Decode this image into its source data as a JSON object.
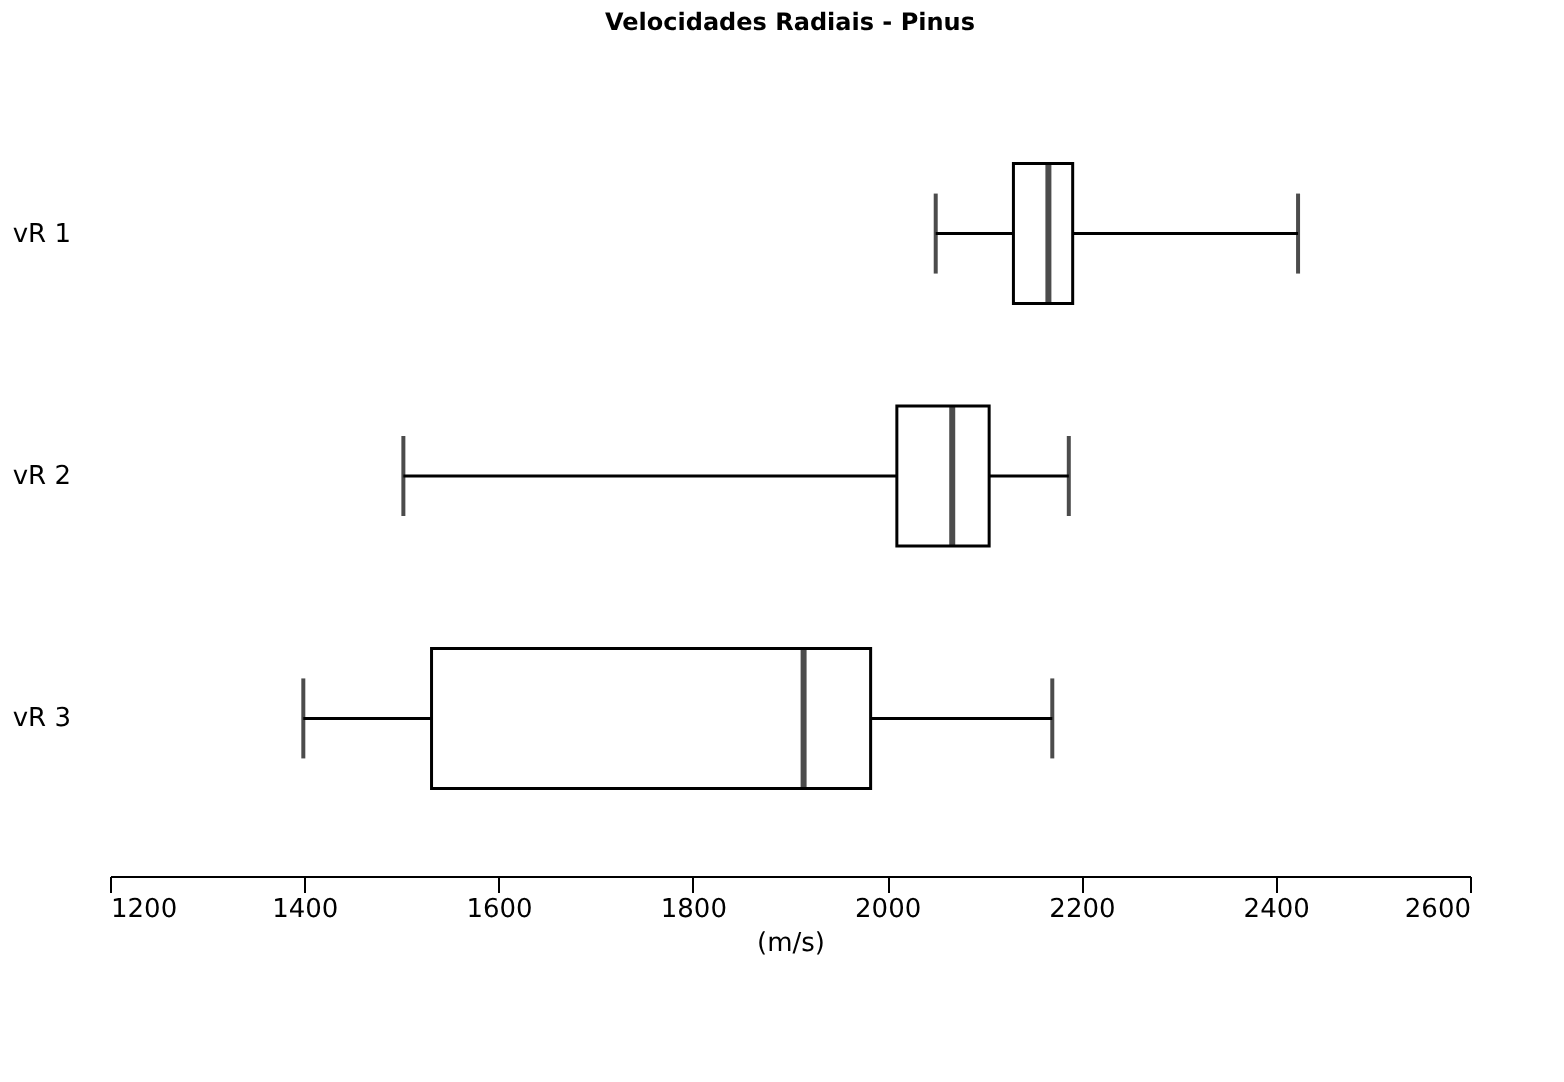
{
  "chart_data": {
    "type": "box",
    "orientation": "horizontal",
    "title": "Velocidades Radiais - Pinus",
    "xlabel": "(m/s)",
    "categories": [
      "vR 1",
      "vR 2",
      "vR 3"
    ],
    "boxes": [
      {
        "low": 2050,
        "q1": 2130,
        "median": 2166,
        "q3": 2191,
        "high": 2423
      },
      {
        "low": 1502,
        "q1": 2010,
        "median": 2067,
        "q3": 2105,
        "high": 2187
      },
      {
        "low": 1399,
        "q1": 1531,
        "median": 1914,
        "q3": 1983,
        "high": 2170
      }
    ],
    "xlim": [
      1200,
      2600
    ],
    "xticks": [
      1200,
      1400,
      1600,
      1800,
      2000,
      2200,
      2400,
      2600
    ],
    "grid": false
  }
}
